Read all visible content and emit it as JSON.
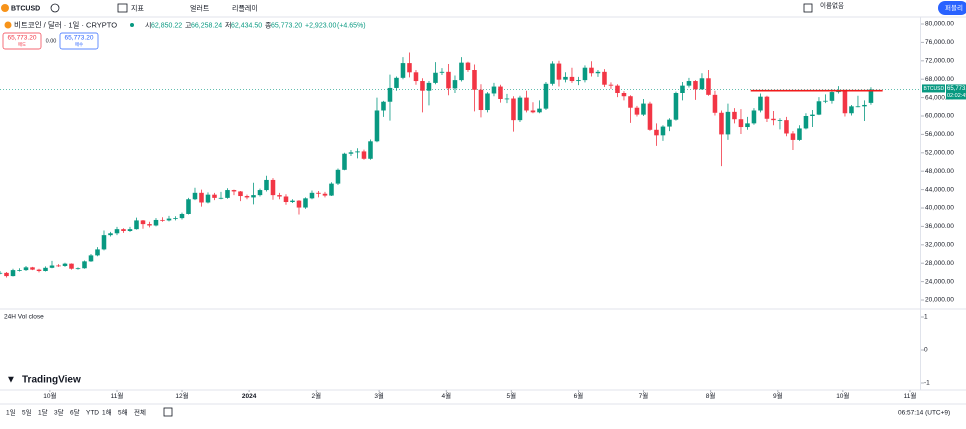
{
  "toolbar": {
    "symbol": "BTCUSD",
    "indicators": "지표",
    "alerts": "얼러트",
    "replay": "리플레이",
    "layout_name": "이름없음",
    "publish": "퍼블리"
  },
  "legend": {
    "name": "비트코인 / 달러 · 1일 · CRYPTO",
    "ohlc": [
      {
        "prefix": "시",
        "value": 62850.22,
        "label": "62,850.22"
      },
      {
        "prefix": "고",
        "value": 66258.24,
        "label": "66,258.24"
      },
      {
        "prefix": "저",
        "value": 62434.5,
        "label": "62,434.50"
      },
      {
        "prefix": "종",
        "value": 65773.2,
        "label": "65,773.20"
      }
    ],
    "change": {
      "value": 2923,
      "label": "+2,923.00"
    },
    "change_pct": {
      "value": 4.65,
      "label": "(+4.65%)"
    },
    "sell": {
      "value": 65773.2,
      "label": "65,773.20",
      "caption": "매도"
    },
    "spread": {
      "value": 0,
      "label": "0.00"
    },
    "buy": {
      "value": 65773.2,
      "label": "65,773.20",
      "caption": "매수"
    }
  },
  "chart_data": {
    "type": "candlestick",
    "up_color": "#089981",
    "down_color": "#f23645",
    "candles": [
      [
        25800,
        26300,
        25600,
        25900
      ],
      [
        25900,
        26100,
        24900,
        25200
      ],
      [
        25200,
        26800,
        25100,
        26500
      ],
      [
        26500,
        26900,
        26200,
        26500
      ],
      [
        26500,
        27400,
        26300,
        27100
      ],
      [
        27100,
        27200,
        26500,
        26600
      ],
      [
        26600,
        26800,
        26000,
        26300
      ],
      [
        26300,
        27300,
        26200,
        27000
      ],
      [
        27000,
        28500,
        26900,
        27500
      ],
      [
        27500,
        27800,
        27200,
        27400
      ],
      [
        27400,
        28100,
        27200,
        27900
      ],
      [
        27900,
        27950,
        26600,
        26800
      ],
      [
        26800,
        27100,
        26600,
        26900
      ],
      [
        26900,
        28600,
        26800,
        28400
      ],
      [
        28400,
        30000,
        28300,
        29700
      ],
      [
        29700,
        31500,
        29500,
        31000
      ],
      [
        31000,
        35100,
        30800,
        34100
      ],
      [
        34100,
        34800,
        33800,
        34500
      ],
      [
        34500,
        35900,
        34100,
        35400
      ],
      [
        35400,
        35600,
        34600,
        35000
      ],
      [
        35000,
        35900,
        34800,
        35400
      ],
      [
        35400,
        37900,
        35300,
        37300
      ],
      [
        37300,
        37400,
        35500,
        36500
      ],
      [
        36500,
        37000,
        35800,
        36200
      ],
      [
        36200,
        37800,
        36000,
        37400
      ],
      [
        37400,
        38000,
        37000,
        37300
      ],
      [
        37300,
        38300,
        37100,
        37700
      ],
      [
        37700,
        38200,
        37300,
        37800
      ],
      [
        37800,
        39000,
        37500,
        38700
      ],
      [
        38700,
        42200,
        38600,
        41900
      ],
      [
        41900,
        44400,
        41700,
        43300
      ],
      [
        43300,
        44000,
        40300,
        41200
      ],
      [
        41200,
        43400,
        41000,
        42900
      ],
      [
        42900,
        43300,
        41700,
        42200
      ],
      [
        42200,
        43500,
        41900,
        42200
      ],
      [
        42200,
        44300,
        42000,
        43900
      ],
      [
        43900,
        44000,
        42800,
        43600
      ],
      [
        43600,
        43700,
        41500,
        42600
      ],
      [
        42600,
        42900,
        41900,
        42300
      ],
      [
        42300,
        45500,
        40800,
        42800
      ],
      [
        42800,
        44200,
        42500,
        43900
      ],
      [
        43900,
        47000,
        43600,
        46100
      ],
      [
        46100,
        46500,
        41800,
        42800
      ],
      [
        42800,
        43300,
        41900,
        42500
      ],
      [
        42500,
        43000,
        40700,
        41300
      ],
      [
        41300,
        41900,
        41100,
        41600
      ],
      [
        41600,
        41700,
        38600,
        40100
      ],
      [
        40100,
        42300,
        39800,
        42100
      ],
      [
        42100,
        43800,
        41900,
        43300
      ],
      [
        43300,
        43700,
        42300,
        43100
      ],
      [
        43100,
        43500,
        42300,
        42700
      ],
      [
        42700,
        45600,
        42600,
        45300
      ],
      [
        45300,
        48600,
        45000,
        48300
      ],
      [
        48300,
        52000,
        48200,
        51800
      ],
      [
        51800,
        52600,
        51300,
        52100
      ],
      [
        52100,
        53000,
        50800,
        52300
      ],
      [
        52300,
        52700,
        50500,
        50700
      ],
      [
        50700,
        54900,
        50500,
        54500
      ],
      [
        54500,
        64000,
        54300,
        61200
      ],
      [
        61200,
        63300,
        59800,
        63100
      ],
      [
        63100,
        69000,
        59000,
        66100
      ],
      [
        66100,
        68600,
        65500,
        68300
      ],
      [
        68300,
        72800,
        68000,
        71500
      ],
      [
        71500,
        73800,
        68400,
        69500
      ],
      [
        69500,
        70000,
        66800,
        67600
      ],
      [
        67600,
        68200,
        60800,
        65500
      ],
      [
        65500,
        67600,
        62300,
        67200
      ],
      [
        67200,
        71700,
        66900,
        69400
      ],
      [
        69400,
        70400,
        68900,
        69600
      ],
      [
        69600,
        71300,
        64500,
        66000
      ],
      [
        66000,
        68800,
        65000,
        67800
      ],
      [
        67800,
        72800,
        67500,
        71600
      ],
      [
        71600,
        71800,
        69600,
        70000
      ],
      [
        70000,
        71200,
        61000,
        65700
      ],
      [
        65700,
        66900,
        59700,
        61300
      ],
      [
        61300,
        65200,
        60800,
        64900
      ],
      [
        64900,
        67200,
        64300,
        66400
      ],
      [
        66400,
        66800,
        62900,
        63700
      ],
      [
        63700,
        64800,
        62800,
        63800
      ],
      [
        63800,
        64300,
        56600,
        59100
      ],
      [
        59100,
        64400,
        58700,
        64000
      ],
      [
        64000,
        65500,
        60800,
        61200
      ],
      [
        61200,
        63000,
        60600,
        60800
      ],
      [
        60800,
        63400,
        60600,
        61600
      ],
      [
        61600,
        67400,
        61300,
        67000
      ],
      [
        67000,
        71900,
        66600,
        71400
      ],
      [
        71400,
        72000,
        66400,
        67900
      ],
      [
        67900,
        69500,
        67300,
        68500
      ],
      [
        68500,
        70500,
        67200,
        67600
      ],
      [
        67600,
        68500,
        66700,
        67800
      ],
      [
        67800,
        71000,
        67300,
        70500
      ],
      [
        70500,
        71900,
        68600,
        69300
      ],
      [
        69300,
        70000,
        68500,
        69600
      ],
      [
        69600,
        70200,
        66300,
        66800
      ],
      [
        66800,
        67300,
        65900,
        66600
      ],
      [
        66600,
        66900,
        64100,
        65000
      ],
      [
        65000,
        65400,
        63400,
        64300
      ],
      [
        64300,
        64500,
        58500,
        61800
      ],
      [
        61800,
        62200,
        59900,
        60300
      ],
      [
        60300,
        63700,
        60000,
        62700
      ],
      [
        62700,
        63100,
        56800,
        57000
      ],
      [
        57000,
        58400,
        53500,
        55800
      ],
      [
        55800,
        58000,
        54600,
        57700
      ],
      [
        57700,
        59500,
        56700,
        59200
      ],
      [
        59200,
        65300,
        59000,
        65000
      ],
      [
        65000,
        67400,
        63400,
        66600
      ],
      [
        66600,
        68300,
        66200,
        67600
      ],
      [
        67600,
        67800,
        63500,
        65800
      ],
      [
        65800,
        69300,
        65700,
        68200
      ],
      [
        68200,
        70000,
        64400,
        64600
      ],
      [
        64600,
        65500,
        60100,
        60700
      ],
      [
        60700,
        61200,
        49100,
        56000
      ],
      [
        56000,
        62700,
        54800,
        60900
      ],
      [
        60900,
        61700,
        58400,
        59300
      ],
      [
        59300,
        61500,
        56100,
        57600
      ],
      [
        57600,
        59800,
        57000,
        58400
      ],
      [
        58400,
        61700,
        58100,
        61200
      ],
      [
        61200,
        64900,
        60800,
        64200
      ],
      [
        64200,
        64400,
        58700,
        59400
      ],
      [
        59400,
        61100,
        58000,
        59100
      ],
      [
        59100,
        59500,
        57100,
        59100
      ],
      [
        59100,
        59800,
        55600,
        56200
      ],
      [
        56200,
        56700,
        52600,
        54800
      ],
      [
        54800,
        58000,
        54600,
        57300
      ],
      [
        57300,
        60600,
        57100,
        60000
      ],
      [
        60000,
        61300,
        57600,
        60300
      ],
      [
        60300,
        64100,
        60200,
        63200
      ],
      [
        63200,
        64700,
        62800,
        63300
      ],
      [
        63300,
        65800,
        62700,
        65200
      ],
      [
        65200,
        66500,
        64900,
        65600
      ],
      [
        65600,
        65700,
        59900,
        60600
      ],
      [
        60600,
        62400,
        60100,
        62100
      ],
      [
        62100,
        64400,
        61900,
        62100
      ],
      [
        62100,
        63400,
        58900,
        62400
      ],
      [
        62850.22,
        66258.24,
        62434.5,
        65773.2
      ]
    ],
    "xlim": [
      0,
      141.7
    ],
    "xticks": [
      {
        "value": 7.67,
        "label": "10월"
      },
      {
        "value": 18,
        "label": "11월"
      },
      {
        "value": 28,
        "label": "12월"
      },
      {
        "value": 38.33,
        "label": "2024"
      },
      {
        "value": 48.67,
        "label": "2월"
      },
      {
        "value": 58.33,
        "label": "3월"
      },
      {
        "value": 68.67,
        "label": "4월"
      },
      {
        "value": 78.67,
        "label": "5월"
      },
      {
        "value": 89,
        "label": "6월"
      },
      {
        "value": 99,
        "label": "7월"
      },
      {
        "value": 109.33,
        "label": "8월"
      },
      {
        "value": 119.67,
        "label": "9월"
      },
      {
        "value": 129.67,
        "label": "10월"
      },
      {
        "value": 140,
        "label": "11월"
      }
    ],
    "ylim": [
      20000,
      80000
    ],
    "yticks": [
      {
        "value": 20000,
        "label": "20,000.00"
      },
      {
        "value": 24000,
        "label": "24,000.00"
      },
      {
        "value": 28000,
        "label": "28,000.00"
      },
      {
        "value": 32000,
        "label": "32,000.00"
      },
      {
        "value": 36000,
        "label": "36,000.00"
      },
      {
        "value": 40000,
        "label": "40,000.00"
      },
      {
        "value": 44000,
        "label": "44,000.00"
      },
      {
        "value": 48000,
        "label": "48,000.00"
      },
      {
        "value": 52000,
        "label": "52,000.00"
      },
      {
        "value": 56000,
        "label": "56,000.00"
      },
      {
        "value": 60000,
        "label": "60,000.00"
      },
      {
        "value": 64000,
        "label": "64,000.00"
      },
      {
        "value": 68000,
        "label": "68,000.00"
      },
      {
        "value": 72000,
        "label": "72,000.00"
      },
      {
        "value": 76000,
        "label": "76,000.00"
      },
      {
        "value": 80000,
        "label": "80,000.00"
      }
    ],
    "last_price": {
      "symbol": "BTCUSD",
      "value": 65773.2,
      "label": "65,773.20",
      "countdown": "02:02:45"
    },
    "resistance": {
      "value": 65500,
      "x": [
        115.5,
        135.8
      ],
      "color": "#f21b1b"
    }
  },
  "volume_pane": {
    "title": "24H Vol close",
    "ylim": [
      -1,
      1
    ],
    "yticks": [
      1,
      0,
      -1
    ]
  },
  "branding": "TradingView",
  "bottom_bar": {
    "ranges": [
      "1일",
      "5일",
      "1달",
      "3달",
      "6달",
      "YTD",
      "1해",
      "5해",
      "전체"
    ],
    "time": "06:57:14 (UTC+9)"
  }
}
